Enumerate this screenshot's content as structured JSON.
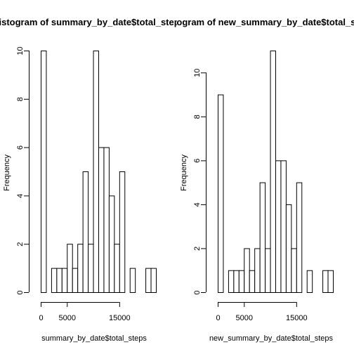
{
  "chart_data": [
    {
      "type": "bar",
      "title": "Histogram of summary_by_date$total_steps",
      "xlabel": "summary_by_date$total_steps",
      "ylabel": "Frequency",
      "bin_width": 1000,
      "bins_start": 0,
      "values": [
        10,
        0,
        1,
        1,
        1,
        2,
        1,
        2,
        5,
        2,
        10,
        6,
        6,
        4,
        2,
        5,
        0,
        1,
        0,
        0,
        1,
        1
      ],
      "xlim": [
        0,
        22000
      ],
      "ylim": [
        0,
        10
      ],
      "xticks": [
        0,
        5000,
        15000
      ],
      "xtick_labels": [
        "0",
        "5000",
        "15000"
      ],
      "yticks": [
        0,
        2,
        4,
        6,
        8,
        10
      ],
      "ytick_labels": [
        "0",
        "2",
        "4",
        "6",
        "8",
        "10"
      ],
      "grid": false
    },
    {
      "type": "bar",
      "title": "Histogram of new_summary_by_date$total_steps",
      "xlabel": "new_summary_by_date$total_steps",
      "ylabel": "Frequency",
      "bin_width": 1000,
      "bins_start": 0,
      "values": [
        9,
        0,
        1,
        1,
        1,
        2,
        1,
        2,
        5,
        2,
        11,
        6,
        6,
        4,
        2,
        5,
        0,
        1,
        0,
        0,
        1,
        1
      ],
      "xlim": [
        0,
        22000
      ],
      "ylim": [
        0,
        11
      ],
      "xticks": [
        0,
        5000,
        15000
      ],
      "xtick_labels": [
        "0",
        "5000",
        "15000"
      ],
      "yticks": [
        0,
        2,
        4,
        6,
        8,
        10
      ],
      "ytick_labels": [
        "0",
        "2",
        "4",
        "6",
        "8",
        "10"
      ],
      "grid": false
    }
  ]
}
